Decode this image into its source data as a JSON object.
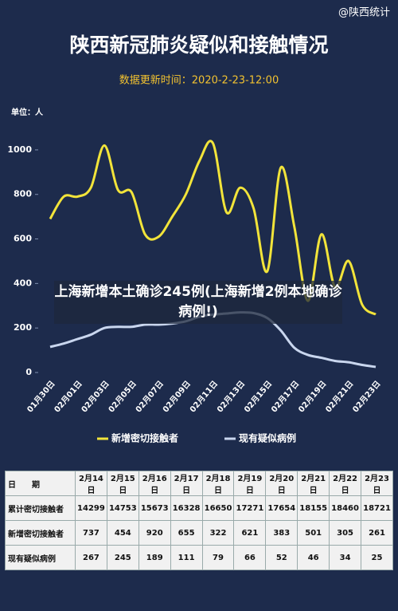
{
  "watermark": "@陕西统计",
  "overlay_text": "上海新增本土确诊245例(上海新增2例本地确诊病例!)",
  "chart_data": {
    "type": "line",
    "title": "陕西新冠肺炎疑似和接触情况",
    "subtitle": "数据更新时间：2020-2-23-12:00",
    "y_label": "单位：人",
    "categories": [
      "01月30日",
      null,
      "02月01日",
      null,
      "02月03日",
      null,
      "02月05日",
      null,
      "02月07日",
      null,
      "02月09日",
      null,
      "02月11日",
      null,
      "02月13日",
      null,
      "02月15日",
      null,
      "02月17日",
      null,
      "02月19日",
      null,
      "02月21日",
      null,
      "02月23日"
    ],
    "series": [
      {
        "name": "新增密切接触者",
        "color": "#f2e43a",
        "values": [
          690,
          790,
          790,
          830,
          1020,
          820,
          810,
          620,
          610,
          700,
          800,
          950,
          1030,
          720,
          830,
          737,
          454,
          920,
          655,
          322,
          621,
          383,
          501,
          305,
          261
        ]
      },
      {
        "name": "现有疑似病例",
        "color": "#c9d6ee",
        "values": [
          115,
          130,
          150,
          170,
          200,
          205,
          205,
          215,
          215,
          220,
          230,
          250,
          260,
          265,
          270,
          267,
          245,
          189,
          111,
          79,
          66,
          52,
          46,
          34,
          25
        ]
      }
    ],
    "ylim": [
      0,
      1100
    ],
    "yticks": [
      0,
      200,
      400,
      600,
      800,
      1000
    ],
    "grid": false
  },
  "table": {
    "header": [
      "日　　期",
      "2月14日",
      "2月15日",
      "2月16日",
      "2月17日",
      "2月18日",
      "2月19日",
      "2月20日",
      "2月21日",
      "2月22日",
      "2月23日"
    ],
    "rows": [
      [
        "累计密切接触者",
        14299,
        14753,
        15673,
        16328,
        16650,
        17271,
        17654,
        18155,
        18460,
        18721
      ],
      [
        "新增密切接触者",
        737,
        454,
        920,
        655,
        322,
        621,
        383,
        501,
        305,
        261
      ],
      [
        "现有疑似病例",
        267,
        245,
        189,
        111,
        79,
        66,
        52,
        46,
        34,
        25
      ]
    ]
  }
}
